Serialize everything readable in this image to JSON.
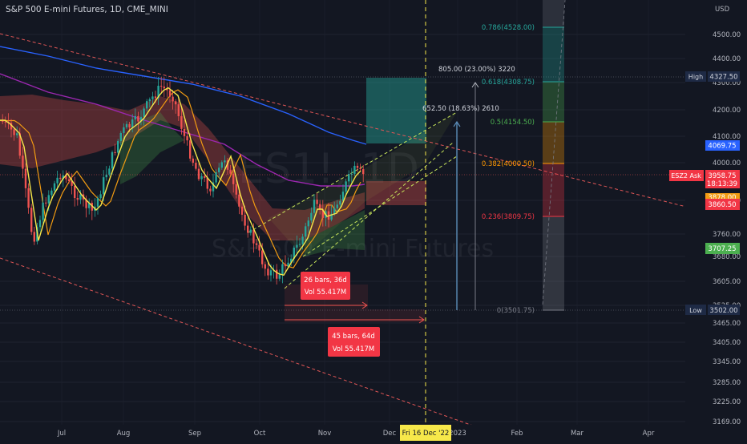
{
  "header": {
    "title": "S&P 500 E-mini Futures, 1D, CME_MINI"
  },
  "watermark": {
    "symbol": "ES1!, 1D",
    "name": "S&P 500 E-mini Futures"
  },
  "price_axis": {
    "currency": "USD",
    "ticks": [
      "4500.00",
      "4400.00",
      "4300.00",
      "4200.00",
      "4100.00",
      "4000.00",
      "3840.00",
      "3760.00",
      "3680.00",
      "3605.00",
      "3525.00",
      "3465.00",
      "3405.00",
      "3345.00",
      "3285.00",
      "3225.00",
      "3169.00"
    ]
  },
  "time_axis": {
    "labels": [
      "Jul",
      "Aug",
      "Sep",
      "Oct",
      "Nov",
      "Dec",
      "2023",
      "Feb",
      "Mar",
      "Apr"
    ],
    "cursor_label": "Fri 16 Dec '22"
  },
  "price_labels": {
    "high_tag": "High",
    "high_value": "4327.50",
    "blue_level": "4069.75",
    "ask_tag": "ESZ2 Ask",
    "ask_value": "3958.75",
    "countdown": "18:13:39",
    "orange_level": "3878.00",
    "red_level": "3860.50",
    "green_level": "3707.25",
    "low_tag": "Low",
    "low_value": "3502.00"
  },
  "fibonacci": [
    {
      "label": "0.786(4528.00)",
      "color": "#26a69a"
    },
    {
      "label": "0.618(4308.75)",
      "color": "#26a69a"
    },
    {
      "label": "0.5(4154.50)",
      "color": "#4caf50"
    },
    {
      "label": "0.382(4000.50)",
      "color": "#ff9800"
    },
    {
      "label": "0.236(3809.75)",
      "color": "#f23645"
    },
    {
      "label": "0(3501.75)",
      "color": "#787b86"
    }
  ],
  "measurements": {
    "move_large": "805.00 (23.00%) 3220",
    "move_small": "652.50 (18.63%) 2610",
    "range_small_bars": "26 bars, 36d",
    "range_small_vol": "Vol 55.417M",
    "range_large_bars": "45 bars, 64d",
    "range_large_vol": "Vol 55.417M"
  },
  "colors": {
    "background": "#131722",
    "bull": "#26a69a",
    "bear": "#ef5350",
    "ma_yellow": "#f7e84a",
    "ma_orange": "#f39c12",
    "ma_purple": "#9c27b0",
    "ma_blue": "#2962ff",
    "trend_red": "#e05656",
    "channel_green": "#c8e65a"
  }
}
